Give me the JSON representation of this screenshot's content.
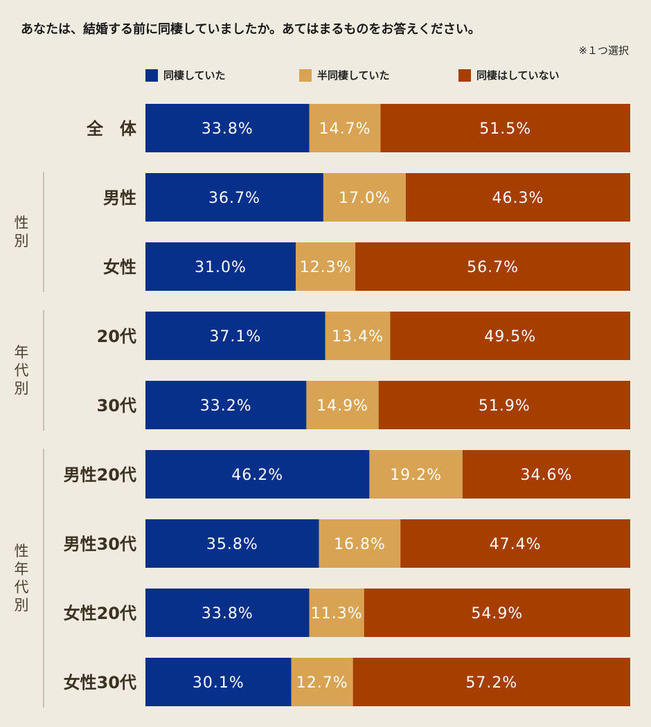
{
  "header": {
    "question": "あなたは、結婚する前に同棲していましたか。あてはまるものをお答えください。",
    "note": "※１つ選択"
  },
  "colors": {
    "series": [
      "#06308a",
      "#d8a352",
      "#a63e00"
    ],
    "label_text": "#ffffff",
    "row_label": "#3b3222",
    "group_label": "#4a4030",
    "group_line": "#a09a8a"
  },
  "chart_data": {
    "type": "bar",
    "orientation": "horizontal",
    "stacked": true,
    "xlim": [
      0,
      100
    ],
    "unit": "%",
    "grid": false,
    "legend_position": "top",
    "categories": [
      "全　体",
      "男性",
      "女性",
      "20代",
      "30代",
      "男性20代",
      "男性30代",
      "女性20代",
      "女性30代"
    ],
    "groups": [
      {
        "label": "",
        "categories": [
          0
        ]
      },
      {
        "label": "性別",
        "categories": [
          1,
          2
        ]
      },
      {
        "label": "年代別",
        "categories": [
          3,
          4
        ]
      },
      {
        "label": "性年代別",
        "categories": [
          5,
          6,
          7,
          8
        ]
      }
    ],
    "series": [
      {
        "name": "同棲していた",
        "values": [
          33.8,
          36.7,
          31.0,
          37.1,
          33.2,
          46.2,
          35.8,
          33.8,
          30.1
        ]
      },
      {
        "name": "半同棲していた",
        "values": [
          14.7,
          17.0,
          12.3,
          13.4,
          14.9,
          19.2,
          16.8,
          11.3,
          12.7
        ]
      },
      {
        "name": "同棲はしていない",
        "values": [
          51.5,
          46.3,
          56.7,
          49.5,
          51.9,
          34.6,
          47.4,
          54.9,
          57.2
        ]
      }
    ]
  }
}
